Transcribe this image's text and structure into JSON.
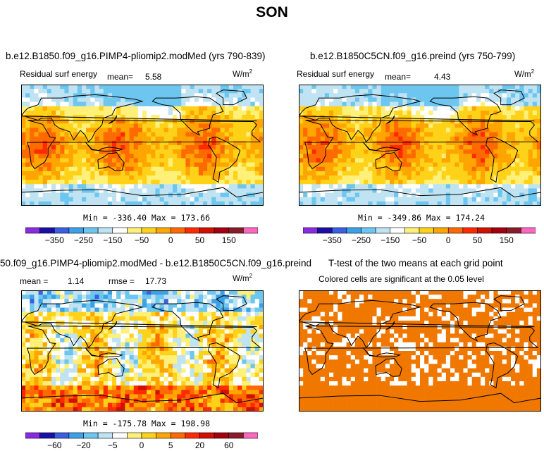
{
  "main_title": "SON",
  "panels": [
    {
      "title": "b.e12.B1850.f09_g16.PIMP4-pliomip2.modMed (yrs 790-839)",
      "left_label": "Residual surf energy",
      "mean_label": "mean=",
      "mean_value": "5.58",
      "units": "W/m",
      "units_exp": "2",
      "minmax": "Min = -336.40 Max = 173.66",
      "colormap": "full"
    },
    {
      "title": "b.e12.B1850C5CN.f09_g16.preind (yrs 750-799)",
      "left_label": "Residual surf energy",
      "mean_label": "mean=",
      "mean_value": "4.43",
      "units": "W/m",
      "units_exp": "2",
      "minmax": "Min = -349.86 Max = 174.24",
      "colormap": "full"
    },
    {
      "title": "50.f09_g16.PIMP4-pliomip2.modMed - b.e12.B1850C5CN.f09_g16.preind",
      "mean_label": "mean =",
      "mean_value": "1.14",
      "rmse_label": "rmse =",
      "rmse_value": "17.73",
      "units": "W/m",
      "units_exp": "2",
      "minmax": "Min = -175.78 Max = 198.98",
      "colormap": "diff"
    },
    {
      "title": "T-test of the two means at each grid point",
      "subtitle": "Colored cells are significant at the 0.05 level",
      "colormap": "ttest"
    }
  ],
  "colorbar_full": {
    "colors": [
      "#8a2be2",
      "#1a0fa8",
      "#3a5fe0",
      "#3aa0e8",
      "#6cc6f0",
      "#bfe3f2",
      "#ffffff",
      "#fff07a",
      "#ffd21a",
      "#ffa500",
      "#ff6a00",
      "#ff2a00",
      "#d01000",
      "#a40010",
      "#8b1a2a",
      "#ff66c0"
    ],
    "tick_labels": [
      "-350",
      "-250",
      "-150",
      "-50",
      "0",
      "50",
      "150"
    ]
  },
  "colorbar_diff": {
    "colors": [
      "#8a2be2",
      "#1a0fa8",
      "#3a5fe0",
      "#3aa0e8",
      "#6cc6f0",
      "#bfe3f2",
      "#ffffff",
      "#fff07a",
      "#ffd21a",
      "#ffa500",
      "#ff6a00",
      "#ff2a00",
      "#d01000",
      "#a40010",
      "#8b1a2a",
      "#ff66c0"
    ],
    "tick_labels": [
      "-60",
      "-20",
      "-5",
      "0",
      "5",
      "20",
      "60"
    ]
  },
  "chart_data": [
    {
      "type": "heatmap",
      "title": "b.e12.B1850.f09_g16.PIMP4-pliomip2.modMed (yrs 790-839)",
      "field": "Residual surf energy",
      "units": "W/m2",
      "mean": 5.58,
      "min": -336.4,
      "max": 173.66,
      "contour_levels_labeled": [
        -350,
        -250,
        -150,
        -50,
        0,
        50,
        150
      ]
    },
    {
      "type": "heatmap",
      "title": "b.e12.B1850C5CN.f09_g16.preind (yrs 750-799)",
      "field": "Residual surf energy",
      "units": "W/m2",
      "mean": 4.43,
      "min": -349.86,
      "max": 174.24,
      "contour_levels_labeled": [
        -350,
        -250,
        -150,
        -50,
        0,
        50,
        150
      ]
    },
    {
      "type": "heatmap",
      "title": "50.f09_g16.PIMP4-pliomip2.modMed - b.e12.B1850C5CN.f09_g16.preind",
      "units": "W/m2",
      "mean": 1.14,
      "rmse": 17.73,
      "min": -175.78,
      "max": 198.98,
      "contour_levels_labeled": [
        -60,
        -20,
        -5,
        0,
        5,
        20,
        60
      ]
    },
    {
      "type": "heatmap",
      "title": "T-test of the two means at each grid point",
      "subtitle": "Colored cells are significant at the 0.05 level",
      "significance_level": 0.05
    }
  ]
}
